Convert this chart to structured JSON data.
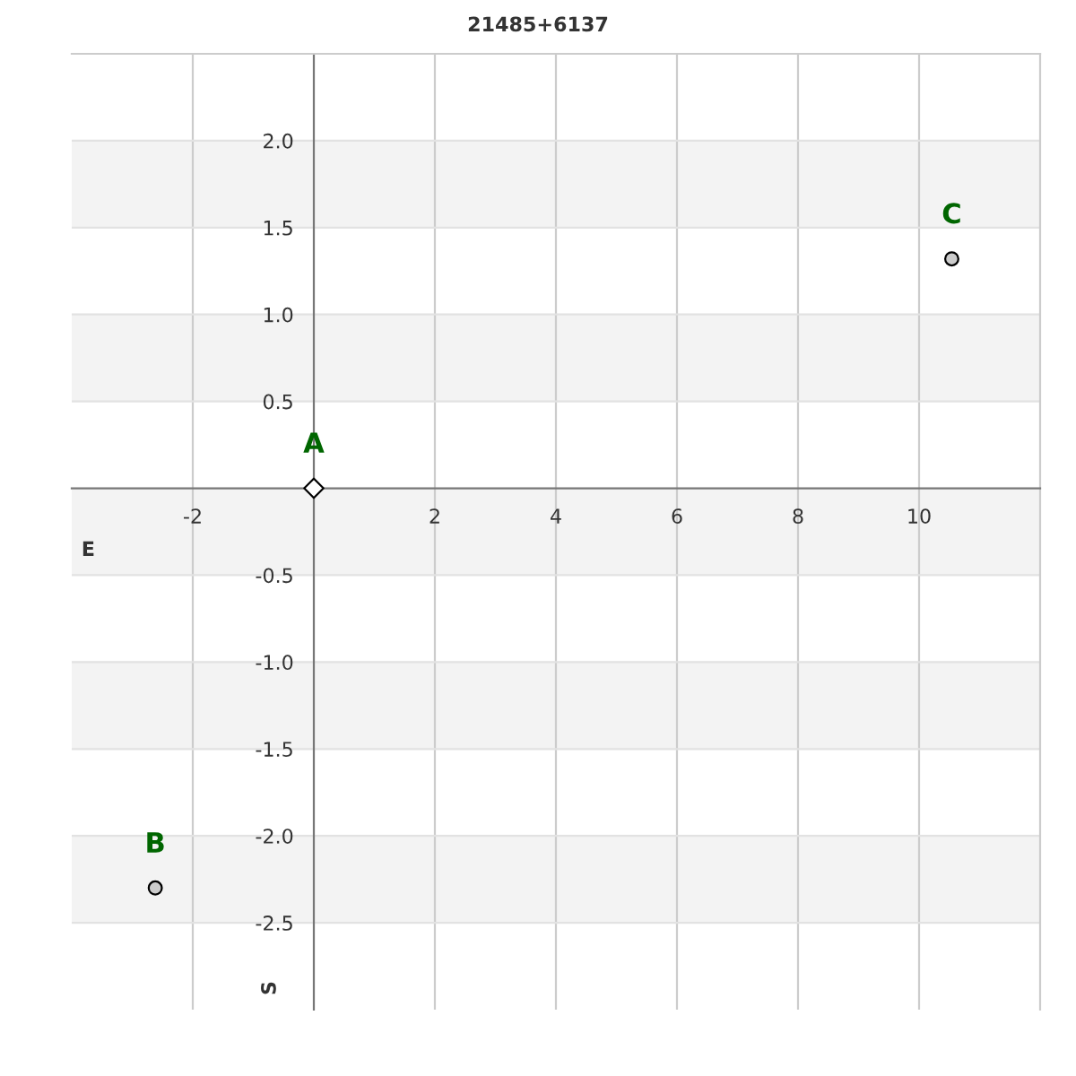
{
  "chart_data": {
    "type": "scatter",
    "title": "21485+6137",
    "xlabel": "E",
    "ylabel": "S",
    "xlim": [
      -4,
      12
    ],
    "ylim": [
      -3,
      2.5
    ],
    "xticks": [
      -2,
      2,
      4,
      6,
      8,
      10
    ],
    "yticks": [
      -2.5,
      {
        "value": -2,
        "label": "-2.0"
      },
      -1.5,
      {
        "value": -1,
        "label": "-1.0"
      },
      -0.5,
      0.5,
      {
        "value": 1,
        "label": "1.0"
      },
      1.5,
      {
        "value": 2,
        "label": "2.0"
      }
    ],
    "grid": true,
    "series": [
      {
        "color": "#ffffff",
        "marker": "diamond",
        "x": [
          0
        ],
        "values": [
          0
        ]
      },
      {
        "color": "#cccccc",
        "marker": "circle",
        "x": [
          -2.62,
          10.54
        ],
        "values": [
          -2.3,
          1.32
        ]
      }
    ],
    "bands": [
      {
        "axis": "y",
        "from": 1.5,
        "to": 2.0,
        "color": "#f3f3f3"
      },
      {
        "axis": "y",
        "from": 0.5,
        "to": 1.0,
        "color": "#f3f3f3"
      },
      {
        "axis": "y",
        "from": -0.5,
        "to": 0,
        "color": "#f3f3f3"
      },
      {
        "axis": "y",
        "from": -1.5,
        "to": -1.0,
        "color": "#f3f3f3"
      },
      {
        "axis": "y",
        "from": -2.5,
        "to": -2.0,
        "color": "#f3f3f3"
      }
    ],
    "annotations": [
      {
        "text": "A",
        "x": 0,
        "y": 0
      },
      {
        "text": "B",
        "x": -2.62,
        "y": -2.3
      },
      {
        "text": "C",
        "x": 10.54,
        "y": 1.32
      }
    ]
  }
}
